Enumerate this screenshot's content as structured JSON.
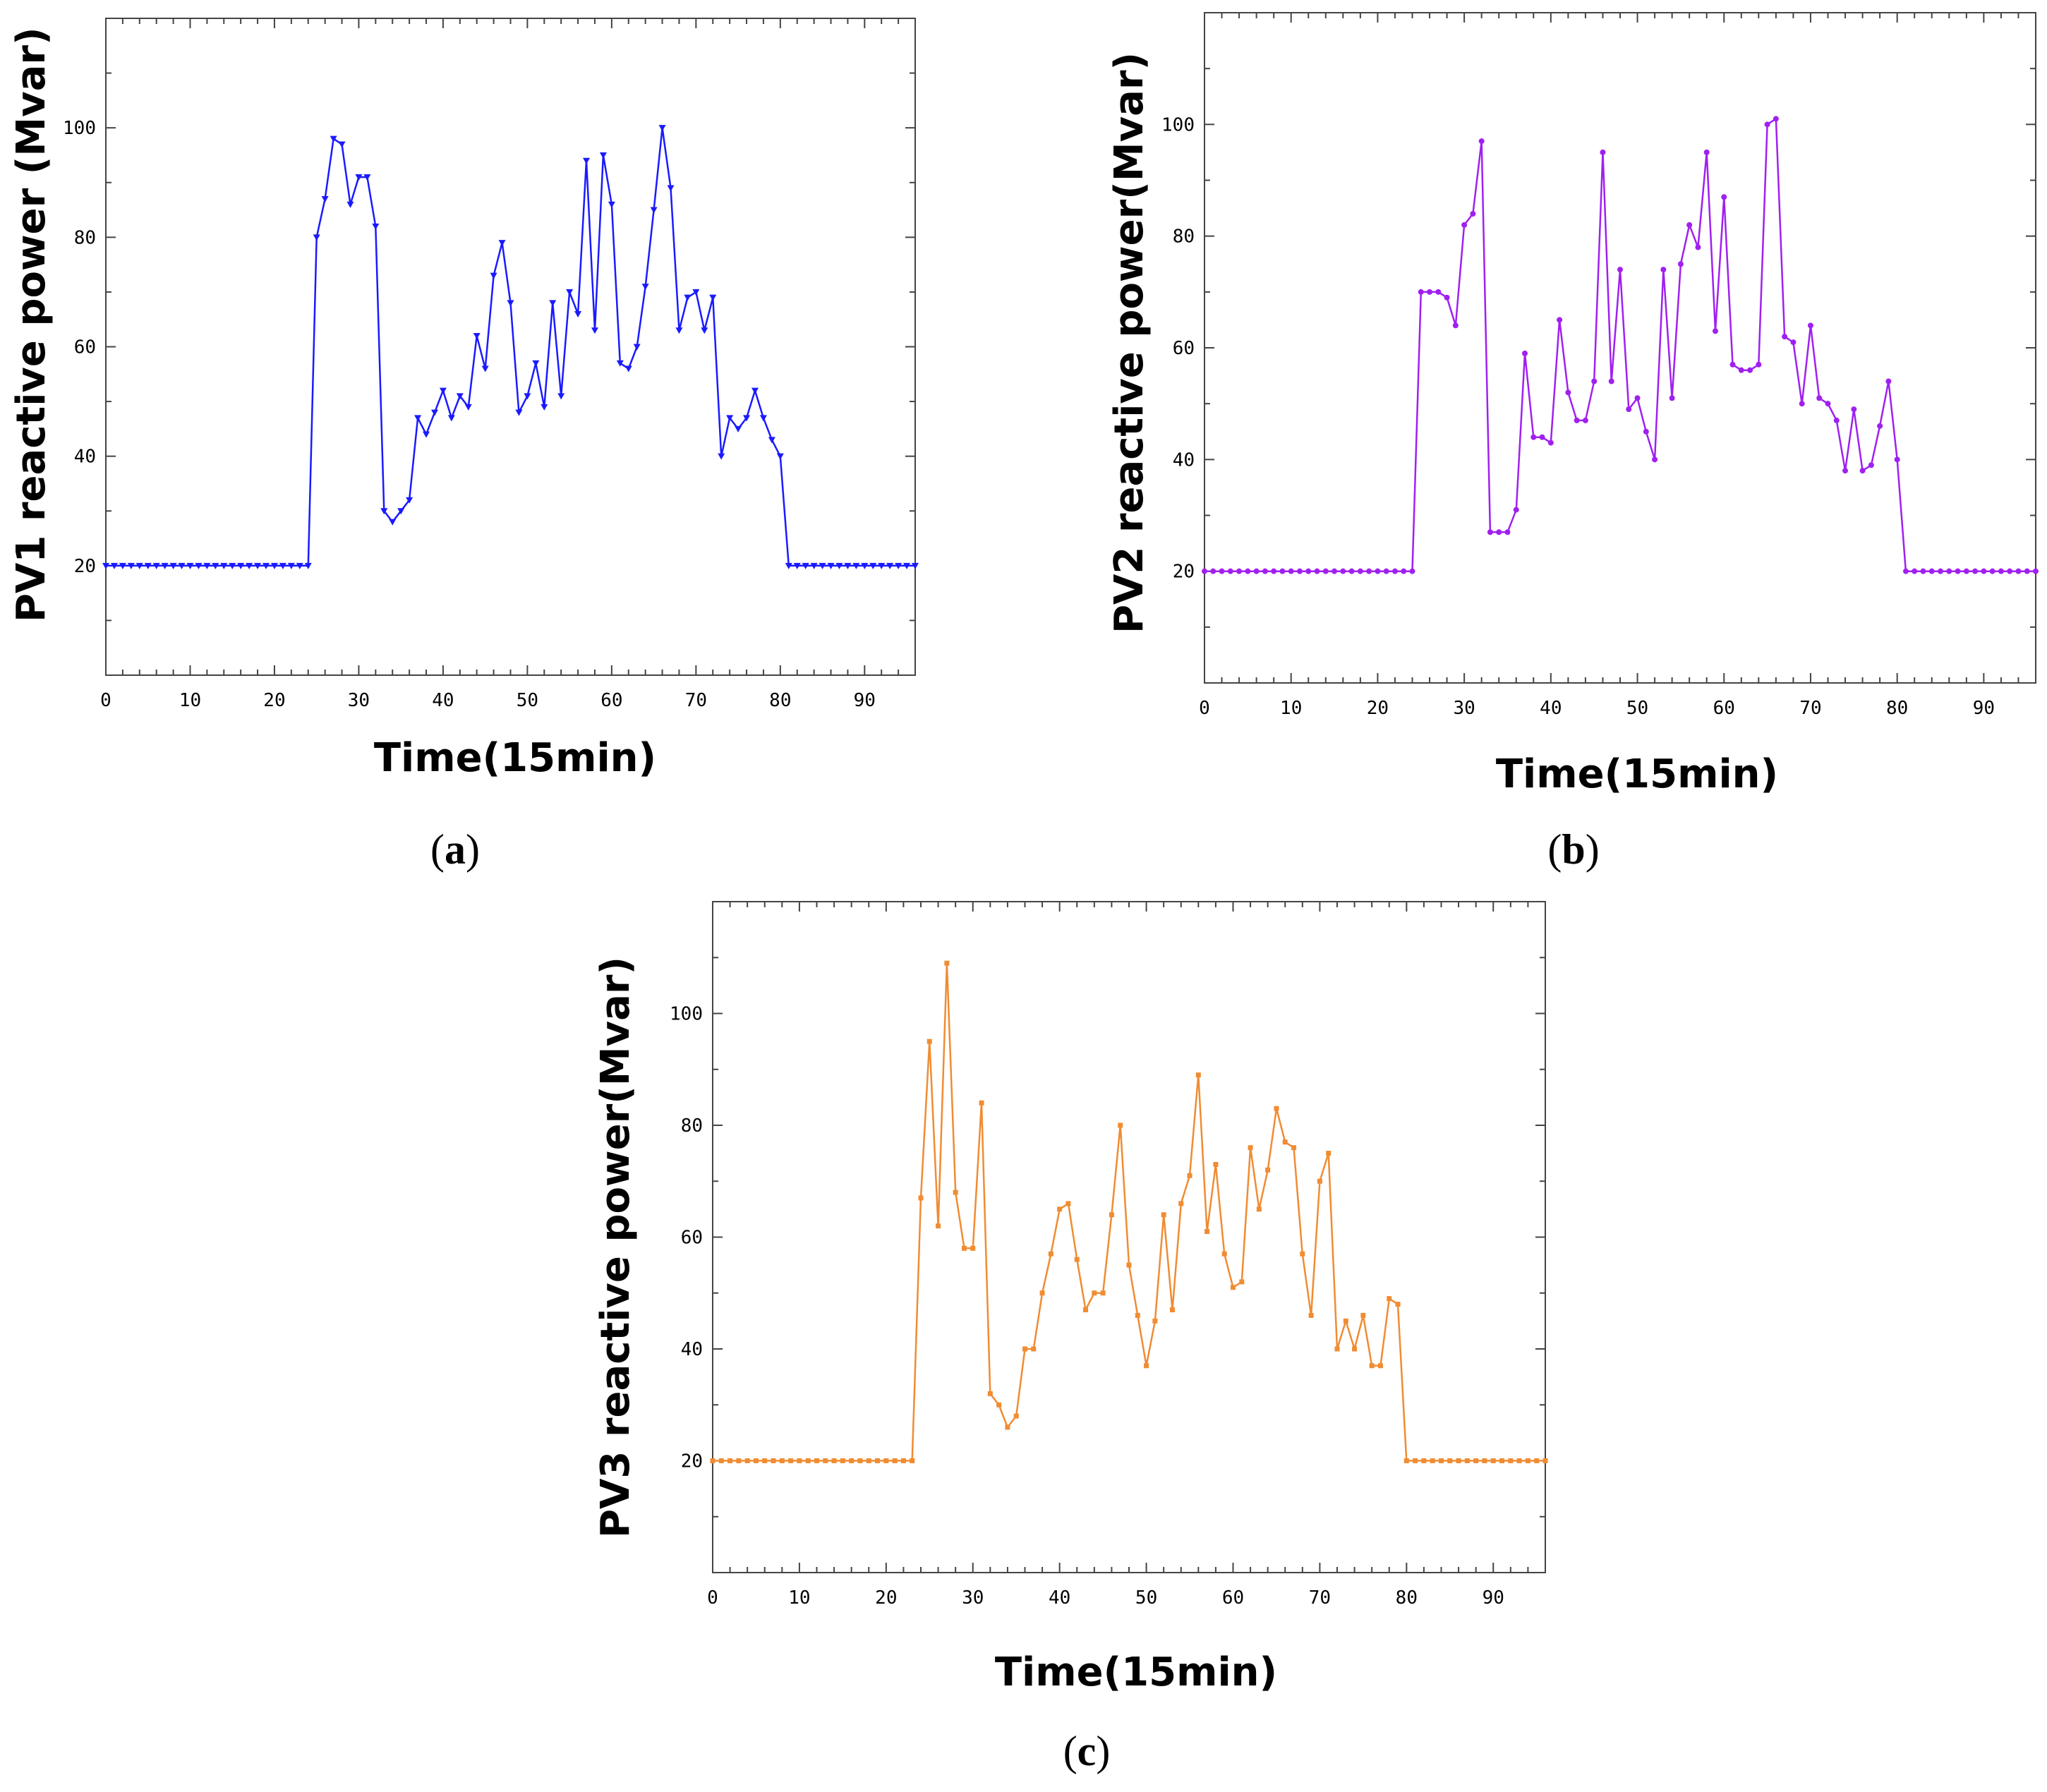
{
  "chart_data": [
    {
      "id": "a",
      "type": "line",
      "panel_label": "a",
      "xlabel": "Time(15min)",
      "ylabel": "PV1 reactive power (Mvar)",
      "xlim": [
        0,
        96
      ],
      "ylim": [
        0,
        120
      ],
      "xticks": [
        0,
        10,
        20,
        30,
        40,
        50,
        60,
        70,
        80,
        90
      ],
      "yticks": [
        20,
        40,
        60,
        80,
        100
      ],
      "color": "#1a1aff",
      "marker": "triangle",
      "series": [
        {
          "name": "PV1",
          "x": [
            0,
            1,
            2,
            3,
            4,
            5,
            6,
            7,
            8,
            9,
            10,
            11,
            12,
            13,
            14,
            15,
            16,
            17,
            18,
            19,
            20,
            21,
            22,
            23,
            24,
            25,
            26,
            27,
            28,
            29,
            30,
            31,
            32,
            33,
            34,
            35,
            36,
            37,
            38,
            39,
            40,
            41,
            42,
            43,
            44,
            45,
            46,
            47,
            48,
            49,
            50,
            51,
            52,
            53,
            54,
            55,
            56,
            57,
            58,
            59,
            60,
            61,
            62,
            63,
            64,
            65,
            66,
            67,
            68,
            69,
            70,
            71,
            72,
            73,
            74,
            75,
            76,
            77,
            78,
            79,
            80,
            81,
            82,
            83,
            84,
            85,
            86,
            87,
            88,
            89,
            90,
            91,
            92,
            93,
            94,
            95,
            96
          ],
          "values": [
            20,
            20,
            20,
            20,
            20,
            20,
            20,
            20,
            20,
            20,
            20,
            20,
            20,
            20,
            20,
            20,
            20,
            20,
            20,
            20,
            20,
            20,
            20,
            20,
            20,
            80,
            87,
            98,
            97,
            86,
            91,
            91,
            82,
            30,
            28,
            30,
            32,
            47,
            44,
            48,
            52,
            47,
            51,
            49,
            62,
            56,
            73,
            79,
            68,
            48,
            51,
            57,
            49,
            68,
            51,
            70,
            66,
            94,
            63,
            95,
            86,
            57,
            56,
            60,
            71,
            85,
            100,
            89,
            63,
            69,
            70,
            63,
            69,
            40,
            47,
            45,
            47,
            52,
            47,
            43,
            40,
            20,
            20,
            20,
            20,
            20,
            20,
            20,
            20,
            20,
            20,
            20,
            20,
            20,
            20,
            20,
            20
          ]
        }
      ]
    },
    {
      "id": "b",
      "type": "line",
      "panel_label": "b",
      "xlabel": "Time(15min)",
      "ylabel": "PV2 reactive power(Mvar)",
      "xlim": [
        0,
        96
      ],
      "ylim": [
        0,
        120
      ],
      "xticks": [
        0,
        10,
        20,
        30,
        40,
        50,
        60,
        70,
        80,
        90
      ],
      "yticks": [
        20,
        40,
        60,
        80,
        100
      ],
      "color": "#a020f0",
      "marker": "star",
      "series": [
        {
          "name": "PV2",
          "x": [
            0,
            1,
            2,
            3,
            4,
            5,
            6,
            7,
            8,
            9,
            10,
            11,
            12,
            13,
            14,
            15,
            16,
            17,
            18,
            19,
            20,
            21,
            22,
            23,
            24,
            25,
            26,
            27,
            28,
            29,
            30,
            31,
            32,
            33,
            34,
            35,
            36,
            37,
            38,
            39,
            40,
            41,
            42,
            43,
            44,
            45,
            46,
            47,
            48,
            49,
            50,
            51,
            52,
            53,
            54,
            55,
            56,
            57,
            58,
            59,
            60,
            61,
            62,
            63,
            64,
            65,
            66,
            67,
            68,
            69,
            70,
            71,
            72,
            73,
            74,
            75,
            76,
            77,
            78,
            79,
            80,
            81,
            82,
            83,
            84,
            85,
            86,
            87,
            88,
            89,
            90,
            91,
            92,
            93,
            94,
            95,
            96
          ],
          "values": [
            20,
            20,
            20,
            20,
            20,
            20,
            20,
            20,
            20,
            20,
            20,
            20,
            20,
            20,
            20,
            20,
            20,
            20,
            20,
            20,
            20,
            20,
            20,
            20,
            20,
            70,
            70,
            70,
            69,
            64,
            82,
            84,
            97,
            27,
            27,
            27,
            31,
            59,
            44,
            44,
            43,
            65,
            52,
            47,
            47,
            54,
            95,
            54,
            74,
            49,
            51,
            45,
            40,
            74,
            51,
            75,
            82,
            78,
            95,
            63,
            87,
            57,
            56,
            56,
            57,
            100,
            101,
            62,
            61,
            50,
            64,
            51,
            50,
            47,
            38,
            49,
            38,
            39,
            46,
            54,
            40,
            20,
            20,
            20,
            20,
            20,
            20,
            20,
            20,
            20,
            20,
            20,
            20,
            20,
            20,
            20,
            20
          ]
        }
      ]
    },
    {
      "id": "c",
      "type": "line",
      "panel_label": "c",
      "xlabel": "Time(15min)",
      "ylabel": "PV3 reactive power(Mvar)",
      "xlim": [
        0,
        96
      ],
      "ylim": [
        0,
        120
      ],
      "xticks": [
        0,
        10,
        20,
        30,
        40,
        50,
        60,
        70,
        80,
        90
      ],
      "yticks": [
        20,
        40,
        60,
        80,
        100
      ],
      "color": "#f08c32",
      "marker": "square",
      "series": [
        {
          "name": "PV3",
          "x": [
            0,
            1,
            2,
            3,
            4,
            5,
            6,
            7,
            8,
            9,
            10,
            11,
            12,
            13,
            14,
            15,
            16,
            17,
            18,
            19,
            20,
            21,
            22,
            23,
            24,
            25,
            26,
            27,
            28,
            29,
            30,
            31,
            32,
            33,
            34,
            35,
            36,
            37,
            38,
            39,
            40,
            41,
            42,
            43,
            44,
            45,
            46,
            47,
            48,
            49,
            50,
            51,
            52,
            53,
            54,
            55,
            56,
            57,
            58,
            59,
            60,
            61,
            62,
            63,
            64,
            65,
            66,
            67,
            68,
            69,
            70,
            71,
            72,
            73,
            74,
            75,
            76,
            77,
            78,
            79,
            80,
            81,
            82,
            83,
            84,
            85,
            86,
            87,
            88,
            89,
            90,
            91,
            92,
            93,
            94,
            95,
            96
          ],
          "values": [
            20,
            20,
            20,
            20,
            20,
            20,
            20,
            20,
            20,
            20,
            20,
            20,
            20,
            20,
            20,
            20,
            20,
            20,
            20,
            20,
            20,
            20,
            20,
            20,
            67,
            95,
            62,
            109,
            68,
            58,
            58,
            84,
            32,
            30,
            26,
            28,
            40,
            40,
            50,
            57,
            65,
            66,
            56,
            47,
            50,
            50,
            64,
            80,
            55,
            46,
            37,
            45,
            64,
            47,
            66,
            71,
            89,
            61,
            73,
            57,
            51,
            52,
            76,
            65,
            72,
            83,
            77,
            76,
            57,
            46,
            70,
            75,
            40,
            45,
            40,
            46,
            37,
            37,
            49,
            48,
            20,
            20,
            20,
            20,
            20,
            20,
            20,
            20,
            20,
            20,
            20,
            20,
            20,
            20,
            20,
            20,
            20
          ]
        }
      ]
    }
  ]
}
